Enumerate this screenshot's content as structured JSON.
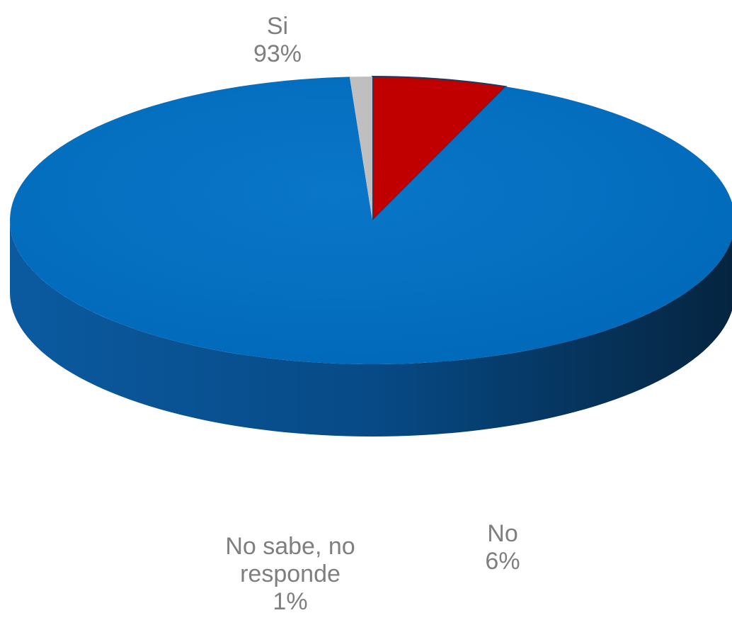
{
  "chart_data": {
    "type": "pie",
    "style": "3d",
    "title": "",
    "slices": [
      {
        "label": "Si",
        "value": 93,
        "display": "93%",
        "color": "#0070c0"
      },
      {
        "label": "No",
        "value": 6,
        "display": "6%",
        "color": "#c00000"
      },
      {
        "label": "No sabe, no responde",
        "value": 1,
        "display": "1%",
        "color": "#bfbfbf"
      }
    ],
    "label_color": "#7f7f7f",
    "legend": "none"
  }
}
